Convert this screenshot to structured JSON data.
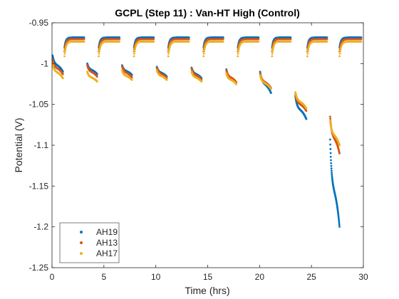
{
  "chart_data": {
    "type": "scatter",
    "title": "GCPL (Step 11) : Van-HT High (Control)",
    "xlabel": "Time (hrs)",
    "ylabel": "Potential (V)",
    "xlim": [
      0,
      30
    ],
    "ylim": [
      -1.25,
      -0.95
    ],
    "x_ticks": [
      0,
      5,
      10,
      15,
      20,
      25,
      30
    ],
    "y_ticks": [
      -0.95,
      -1,
      -1.05,
      -1.1,
      -1.15,
      -1.2,
      -1.25
    ],
    "x_tick_labels": [
      "0",
      "5",
      "10",
      "15",
      "20",
      "25",
      "30"
    ],
    "y_tick_labels": [
      "-0.95",
      "-1",
      "-1.05",
      "-1.1",
      "-1.15",
      "-1.2",
      "-1.25"
    ],
    "y_reversed": true,
    "grid": false,
    "legend_position": "bottom-left",
    "cycle_period_hrs": 3.35,
    "series": [
      {
        "name": "AH19",
        "color": "#0072BD",
        "upper_plateau": -0.968,
        "lower_plateau": -1.012,
        "upper_cycles": [
          [
            1.2,
            3.1
          ],
          [
            4.5,
            6.5
          ],
          [
            7.9,
            9.8
          ],
          [
            11.2,
            13.2
          ],
          [
            14.6,
            16.5
          ],
          [
            17.9,
            19.9
          ],
          [
            21.2,
            23.0
          ],
          [
            24.6,
            26.5
          ],
          [
            27.7,
            29.8
          ]
        ],
        "lower_cycles": [
          {
            "start": 0.05,
            "end": 1.05,
            "start_v": -0.99,
            "end_v": -1.01
          },
          {
            "start": 3.4,
            "end": 4.35,
            "start_v": -1.0,
            "end_v": -1.013
          },
          {
            "start": 6.75,
            "end": 7.7,
            "start_v": -1.002,
            "end_v": -1.014
          },
          {
            "start": 10.1,
            "end": 11.05,
            "start_v": -1.004,
            "end_v": -1.016
          },
          {
            "start": 13.45,
            "end": 14.4,
            "start_v": -1.005,
            "end_v": -1.018
          },
          {
            "start": 16.8,
            "end": 17.75,
            "start_v": -1.007,
            "end_v": -1.025
          },
          {
            "start": 20.05,
            "end": 21.1,
            "start_v": -1.01,
            "end_v": -1.036
          },
          {
            "start": 23.45,
            "end": 24.5,
            "start_v": -1.04,
            "end_v": -1.068
          },
          {
            "start": 26.8,
            "end": 27.7,
            "start_v": -1.093,
            "end_v": -1.2
          }
        ]
      },
      {
        "name": "AH13",
        "color": "#D95319",
        "upper_plateau": -0.97,
        "lower_plateau": -1.015,
        "upper_cycles": [
          [
            1.2,
            3.1
          ],
          [
            4.5,
            6.5
          ],
          [
            7.9,
            9.8
          ],
          [
            11.2,
            13.2
          ],
          [
            14.6,
            16.5
          ],
          [
            17.9,
            19.9
          ],
          [
            21.2,
            23.0
          ],
          [
            24.6,
            26.5
          ],
          [
            27.7,
            29.8
          ]
        ],
        "lower_cycles": [
          {
            "start": 0.05,
            "end": 1.05,
            "start_v": -0.995,
            "end_v": -1.013
          },
          {
            "start": 3.4,
            "end": 4.35,
            "start_v": -1.002,
            "end_v": -1.016
          },
          {
            "start": 6.75,
            "end": 7.7,
            "start_v": -1.003,
            "end_v": -1.017
          },
          {
            "start": 10.1,
            "end": 11.05,
            "start_v": -1.005,
            "end_v": -1.018
          },
          {
            "start": 13.45,
            "end": 14.4,
            "start_v": -1.006,
            "end_v": -1.02
          },
          {
            "start": 16.8,
            "end": 17.75,
            "start_v": -1.008,
            "end_v": -1.023
          },
          {
            "start": 20.05,
            "end": 21.1,
            "start_v": -1.012,
            "end_v": -1.03
          },
          {
            "start": 23.45,
            "end": 24.5,
            "start_v": -1.038,
            "end_v": -1.058
          },
          {
            "start": 26.8,
            "end": 27.7,
            "start_v": -1.065,
            "end_v": -1.11
          }
        ]
      },
      {
        "name": "AH17",
        "color": "#EDB120",
        "upper_plateau": -0.973,
        "lower_plateau": -1.018,
        "upper_cycles": [
          [
            1.2,
            3.1
          ],
          [
            4.5,
            6.5
          ],
          [
            7.9,
            9.8
          ],
          [
            11.2,
            13.2
          ],
          [
            14.6,
            16.5
          ],
          [
            17.9,
            19.9
          ],
          [
            21.2,
            23.0
          ],
          [
            24.6,
            26.5
          ],
          [
            27.7,
            29.8
          ]
        ],
        "lower_cycles": [
          {
            "start": 0.05,
            "end": 1.05,
            "start_v": -1.0,
            "end_v": -1.018
          },
          {
            "start": 3.4,
            "end": 4.35,
            "start_v": -1.01,
            "end_v": -1.022
          },
          {
            "start": 6.75,
            "end": 7.7,
            "start_v": -1.008,
            "end_v": -1.02
          },
          {
            "start": 10.1,
            "end": 11.05,
            "start_v": -1.008,
            "end_v": -1.02
          },
          {
            "start": 13.45,
            "end": 14.4,
            "start_v": -1.01,
            "end_v": -1.022
          },
          {
            "start": 16.8,
            "end": 17.75,
            "start_v": -1.012,
            "end_v": -1.025
          },
          {
            "start": 20.05,
            "end": 21.1,
            "start_v": -1.014,
            "end_v": -1.031
          },
          {
            "start": 23.45,
            "end": 24.5,
            "start_v": -1.035,
            "end_v": -1.055
          },
          {
            "start": 26.8,
            "end": 27.7,
            "start_v": -1.07,
            "end_v": -1.1
          }
        ]
      }
    ]
  }
}
